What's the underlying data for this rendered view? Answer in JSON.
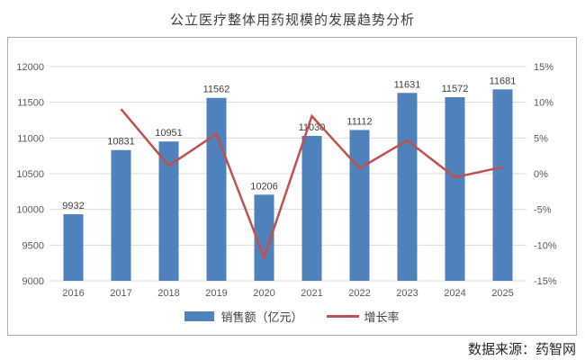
{
  "title": "公立医疗整体用药规模的发展趋势分析",
  "source": "数据来源：药智网",
  "legend": {
    "bar_label": "销售额（亿元）",
    "line_label": "增长率"
  },
  "colors": {
    "bar": "#4F81BD",
    "line": "#C0504D",
    "border": "#9DAFC3",
    "grid": "#DCDCDC",
    "axis_text": "#595959",
    "label_text": "#404040"
  },
  "chart_data": {
    "type": "bar+line combo",
    "title": "公立医疗整体用药规模的发展趋势分析",
    "categories": [
      "2016",
      "2017",
      "2018",
      "2019",
      "2020",
      "2021",
      "2022",
      "2023",
      "2024",
      "2025"
    ],
    "series": [
      {
        "name": "销售额（亿元）",
        "type": "bar",
        "axis": "left",
        "values": [
          9932,
          10831,
          10951,
          11562,
          10206,
          11030,
          11112,
          11631,
          11572,
          11681
        ],
        "data_labels": [
          "9932",
          "10831",
          "10951",
          "11562",
          "10206",
          "11030",
          "11112",
          "11631",
          "11572",
          "11681"
        ]
      },
      {
        "name": "增长率",
        "type": "line",
        "axis": "right",
        "values_pct": [
          null,
          9.05,
          1.11,
          5.58,
          -11.73,
          8.07,
          0.74,
          4.67,
          -0.51,
          0.94
        ]
      }
    ],
    "left_axis": {
      "min": 9000,
      "max": 12000,
      "step": 500,
      "ticks": [
        "12000",
        "11500",
        "11000",
        "10500",
        "10000",
        "9500",
        "9000"
      ]
    },
    "right_axis": {
      "min": -15,
      "max": 15,
      "step": 5,
      "ticks": [
        "15%",
        "10%",
        "5%",
        "0%",
        "-5%",
        "-10%",
        "-15%"
      ]
    },
    "grid": true,
    "legend_position": "bottom"
  }
}
